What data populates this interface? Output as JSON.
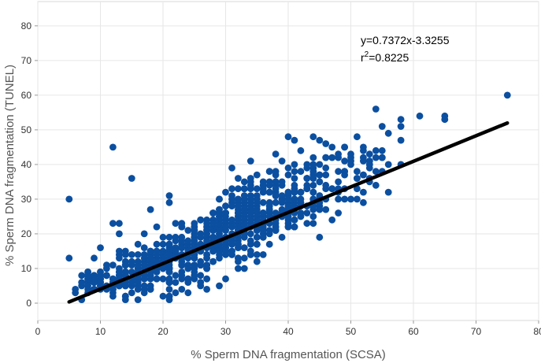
{
  "chart_data": {
    "type": "scatter",
    "title": "",
    "xlabel": "% Sperm DNA fragmentation (SCSA)",
    "ylabel": "% Sperm DNA fragmentation (TUNEL)",
    "xlim": [
      0,
      80
    ],
    "ylim": [
      -5,
      87
    ],
    "x_ticks": [
      0,
      10,
      20,
      30,
      40,
      50,
      60,
      70,
      80
    ],
    "y_ticks": [
      0,
      10,
      20,
      30,
      40,
      50,
      60,
      70,
      80
    ],
    "grid": true,
    "point_color": "#0b4fa0",
    "line_color": "#000000",
    "regression": {
      "slope": 0.7372,
      "intercept": -3.3255,
      "x_start": 5,
      "x_end": 75
    },
    "annotation": {
      "equation": "y=0.7372x-3.3255",
      "r2_prefix": "r",
      "r2_sup": "2",
      "r2_value": "=0.8225"
    },
    "point_clusters": [
      {
        "x_from": 7,
        "x_to": 12,
        "y_center_slope": 0.4,
        "y_center_intercept": 2.6,
        "spread": 1.8,
        "count": 60
      },
      {
        "x_from": 12,
        "x_to": 20,
        "y_center_slope": 0.55,
        "y_center_intercept": 0.4,
        "spread": 3.2,
        "count": 140
      },
      {
        "x_from": 20,
        "x_to": 28,
        "y_center_slope": 0.75,
        "y_center_intercept": -3.5,
        "spread": 4.5,
        "count": 200
      },
      {
        "x_from": 28,
        "x_to": 36,
        "y_center_slope": 0.8,
        "y_center_intercept": -3.0,
        "spread": 5.0,
        "count": 240
      },
      {
        "x_from": 36,
        "x_to": 45,
        "y_center_slope": 0.72,
        "y_center_intercept": 0.0,
        "spread": 5.0,
        "count": 160
      },
      {
        "x_from": 45,
        "x_to": 55,
        "y_center_slope": 0.7,
        "y_center_intercept": 2.0,
        "spread": 4.5,
        "count": 50
      }
    ],
    "outlier_points": [
      {
        "x": 5,
        "y": 30
      },
      {
        "x": 5,
        "y": 13
      },
      {
        "x": 6,
        "y": 4
      },
      {
        "x": 6,
        "y": 3
      },
      {
        "x": 9,
        "y": 13
      },
      {
        "x": 10,
        "y": 16
      },
      {
        "x": 12,
        "y": 45
      },
      {
        "x": 12,
        "y": 23
      },
      {
        "x": 13,
        "y": 23
      },
      {
        "x": 13,
        "y": 20
      },
      {
        "x": 15,
        "y": 36
      },
      {
        "x": 13,
        "y": 15
      },
      {
        "x": 17,
        "y": 20
      },
      {
        "x": 18,
        "y": 27
      },
      {
        "x": 19,
        "y": 22
      },
      {
        "x": 21,
        "y": 1
      },
      {
        "x": 21,
        "y": 31
      },
      {
        "x": 21,
        "y": 29
      },
      {
        "x": 22,
        "y": 3
      },
      {
        "x": 27,
        "y": 4
      },
      {
        "x": 29,
        "y": 5
      },
      {
        "x": 30,
        "y": 7
      },
      {
        "x": 31,
        "y": 39
      },
      {
        "x": 34,
        "y": 41
      },
      {
        "x": 37,
        "y": 38
      },
      {
        "x": 38,
        "y": 43
      },
      {
        "x": 39,
        "y": 41
      },
      {
        "x": 40,
        "y": 48
      },
      {
        "x": 41,
        "y": 47
      },
      {
        "x": 42,
        "y": 44
      },
      {
        "x": 43,
        "y": 40
      },
      {
        "x": 44,
        "y": 48
      },
      {
        "x": 45,
        "y": 47
      },
      {
        "x": 46,
        "y": 46
      },
      {
        "x": 47,
        "y": 42
      },
      {
        "x": 48,
        "y": 43
      },
      {
        "x": 49,
        "y": 37
      },
      {
        "x": 49,
        "y": 45
      },
      {
        "x": 50,
        "y": 42
      },
      {
        "x": 51,
        "y": 48
      },
      {
        "x": 52,
        "y": 45
      },
      {
        "x": 53,
        "y": 40
      },
      {
        "x": 54,
        "y": 56
      },
      {
        "x": 54,
        "y": 44
      },
      {
        "x": 55,
        "y": 38
      },
      {
        "x": 55,
        "y": 42
      },
      {
        "x": 55,
        "y": 51
      },
      {
        "x": 56,
        "y": 49
      },
      {
        "x": 56,
        "y": 40
      },
      {
        "x": 56,
        "y": 32
      },
      {
        "x": 58,
        "y": 53
      },
      {
        "x": 58,
        "y": 51
      },
      {
        "x": 58,
        "y": 47
      },
      {
        "x": 58,
        "y": 40
      },
      {
        "x": 61,
        "y": 54
      },
      {
        "x": 65,
        "y": 54
      },
      {
        "x": 65,
        "y": 53
      },
      {
        "x": 75,
        "y": 60
      },
      {
        "x": 44,
        "y": 23
      },
      {
        "x": 45,
        "y": 19
      },
      {
        "x": 42,
        "y": 25
      },
      {
        "x": 40,
        "y": 28
      },
      {
        "x": 48,
        "y": 26
      },
      {
        "x": 47,
        "y": 24
      },
      {
        "x": 50,
        "y": 30
      },
      {
        "x": 51,
        "y": 33
      },
      {
        "x": 53,
        "y": 35
      },
      {
        "x": 36,
        "y": 14
      },
      {
        "x": 33,
        "y": 10
      },
      {
        "x": 35,
        "y": 12
      },
      {
        "x": 32,
        "y": 10
      }
    ]
  }
}
